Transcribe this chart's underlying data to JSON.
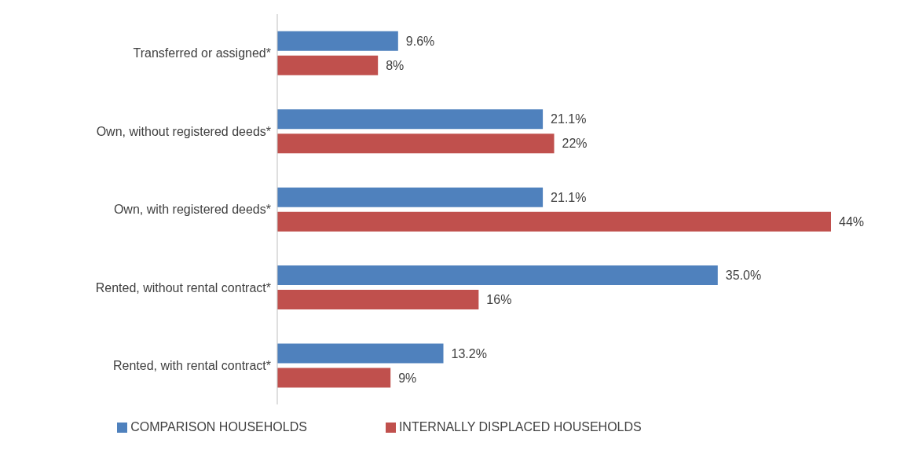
{
  "chart_data": {
    "type": "bar",
    "orientation": "horizontal",
    "categories": [
      "Transferred or assigned*",
      "Own, without registered deeds*",
      "Own, with registered deeds*",
      "Rented, without rental contract*",
      "Rented, with rental contract*"
    ],
    "series": [
      {
        "name": "COMPARISON HOUSEHOLDS",
        "color": "#4f81bd",
        "values": [
          9.6,
          21.1,
          21.1,
          35.0,
          13.2
        ],
        "value_labels": [
          "9.6%",
          "21.1%",
          "21.1%",
          "35.0%",
          "13.2%"
        ]
      },
      {
        "name": "INTERNALLY DISPLACED HOUSEHOLDS",
        "color": "#c0504d",
        "values": [
          8,
          22,
          44,
          16,
          9
        ],
        "value_labels": [
          "8%",
          "22%",
          "44%",
          "16%",
          "9%"
        ]
      }
    ],
    "legend": "bottom",
    "grid": false
  }
}
